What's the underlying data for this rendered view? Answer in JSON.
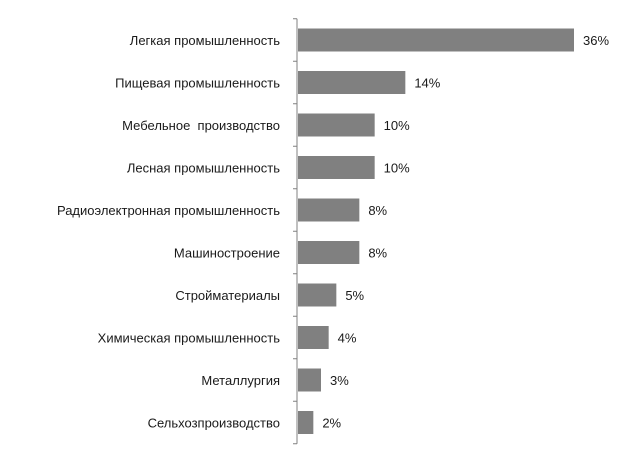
{
  "chart_data": {
    "type": "bar",
    "orientation": "horizontal",
    "categories": [
      "Легкая промышленность",
      "Пищевая промышленность",
      "Мебельное  производство",
      "Лесная промышленность",
      "Радиоэлектронная промышленность",
      "Машиностроение",
      "Стройматериалы",
      "Химическая промышленность",
      "Металлургия",
      "Сельхозпроизводство"
    ],
    "values": [
      36,
      14,
      10,
      10,
      8,
      8,
      5,
      4,
      3,
      2
    ],
    "data_labels": [
      "36%",
      "14%",
      "10%",
      "10%",
      "8%",
      "8%",
      "5%",
      "4%",
      "3%",
      "2%"
    ],
    "unit": "%",
    "xlim": [
      0,
      38
    ],
    "grid": false,
    "legend": "none",
    "colors": {
      "bar": "#808080",
      "axis": "#808080",
      "text": "#1a1a1a"
    }
  }
}
